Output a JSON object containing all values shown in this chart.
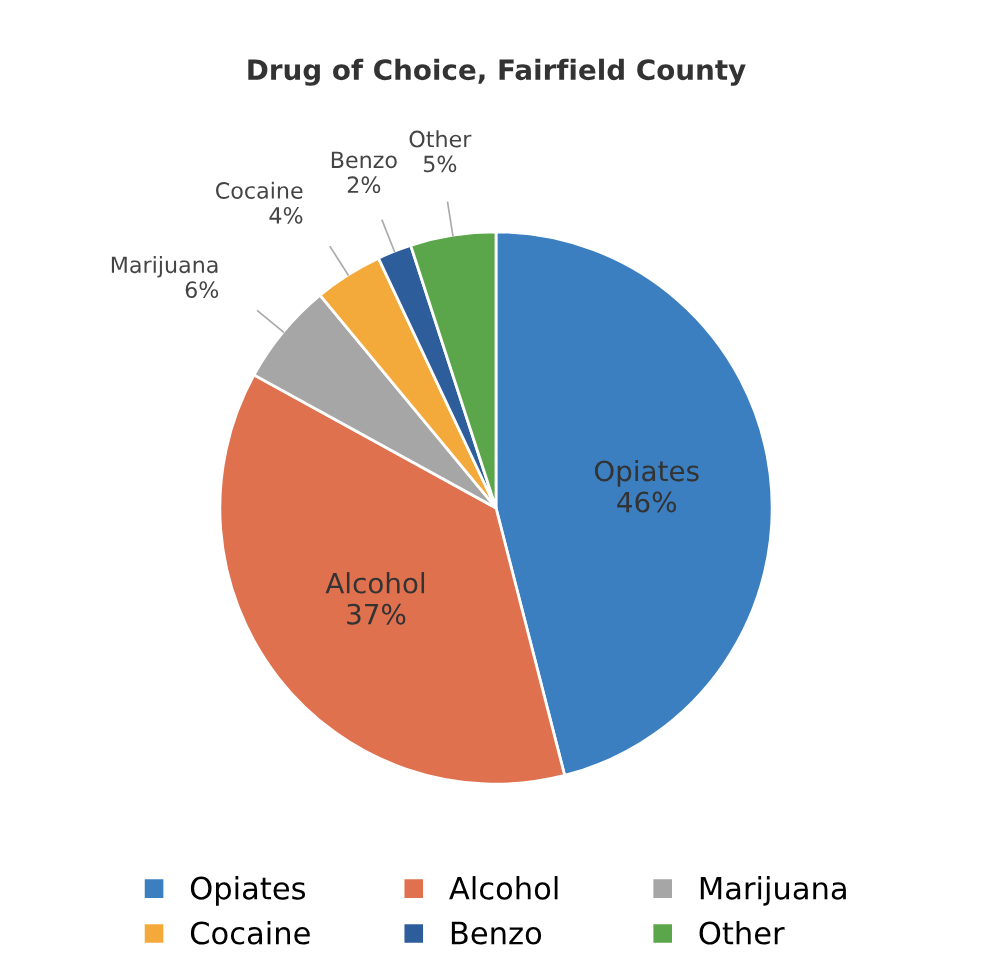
{
  "chart_data": {
    "type": "pie",
    "title": "Drug of Choice, Fairfield County",
    "categories": [
      "Opiates",
      "Alcohol",
      "Marijuana",
      "Cocaine",
      "Benzo",
      "Other"
    ],
    "values": [
      46,
      37,
      6,
      4,
      2,
      5
    ],
    "value_labels": [
      "46%",
      "37%",
      "6%",
      "4%",
      "2%",
      "5%"
    ],
    "colors": [
      "#3b7fc0",
      "#e0714f",
      "#a6a6a6",
      "#f4aa3a",
      "#2e5d9c",
      "#5ba64a"
    ],
    "legend": "bottom"
  }
}
